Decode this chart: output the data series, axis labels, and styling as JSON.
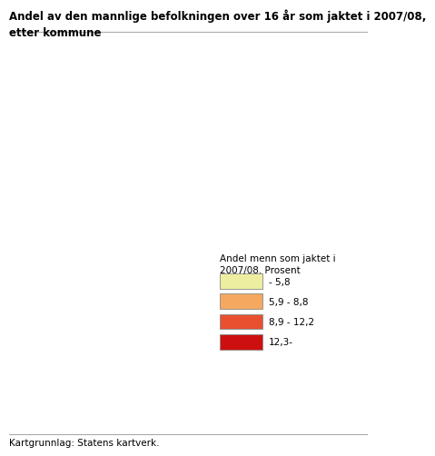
{
  "title_line1": "Andel av den mannlige befolkningen over 16 år som jaktet i 2007/08,",
  "title_line2": "etter kommune",
  "legend_title": "Andel menn som jaktet i\n2007/08. Prosent",
  "legend_labels": [
    "- 5,8",
    "5,9 - 8,8",
    "8,9 - 12,2",
    "12,3-"
  ],
  "legend_colors": [
    "#eeeea0",
    "#f5a860",
    "#e85030",
    "#cc1010"
  ],
  "source": "Kartgrunnlag: Statens kartverk.",
  "bg_color": "#ffffff",
  "title_fontsize": 8.5,
  "legend_fontsize": 7.5,
  "source_fontsize": 7.5,
  "map_colors": {
    "low": "#eeeea0",
    "mid_low": "#f5a860",
    "mid_high": "#e85030",
    "high": "#cc1010"
  }
}
